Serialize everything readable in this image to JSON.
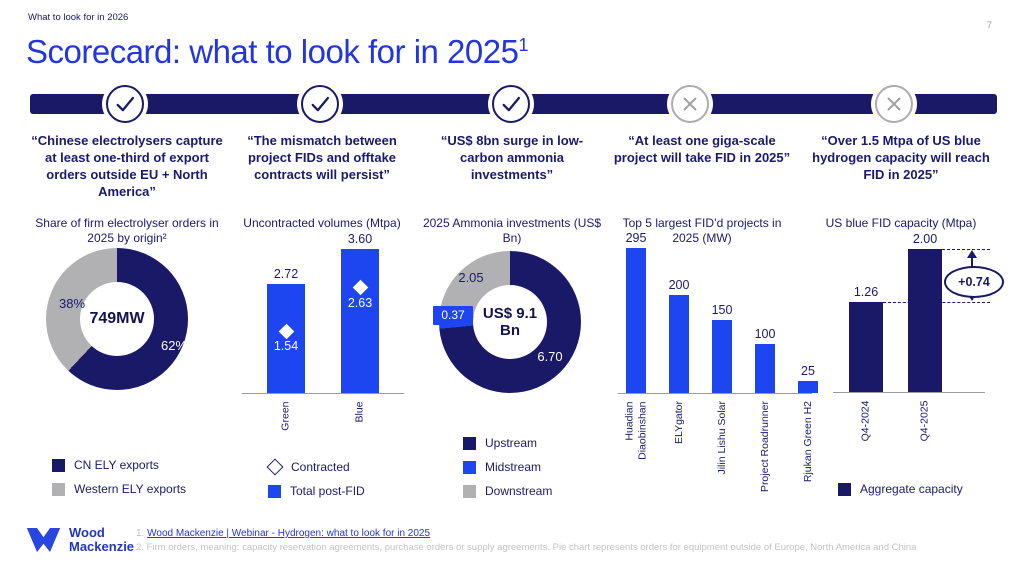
{
  "slide": {
    "eyebrow": "What to look for in 2026",
    "title": "Scorecard: what to look for in 2025",
    "title_sup": "1",
    "page_number": "7",
    "footer": {
      "logo_line1": "Wood",
      "logo_line2": "Mackenzie",
      "footnote1_index": "1.",
      "footnote1_link": "Wood Mackenzie | Webinar - Hydrogen: what to look for in 2025",
      "footnote2": "2. Firm orders, meaning: capacity reservation agreements, purchase orders or supply agreements. Pie chart represents orders for equipment outside of Europe, North America and China"
    }
  },
  "colors": {
    "navy": "#191968",
    "bright_blue": "#2335e3",
    "bar_blue": "#1e46f0",
    "slice_gray": "#b1b1b3",
    "cross_gray": "#9e9ea2"
  },
  "columns": [
    {
      "status": "pass",
      "quote": "“Chinese electrolysers capture at least one-third of export orders outside EU + North America”",
      "chart_title": "Share of firm electrolyser orders in 2025 by origin²",
      "legend": [
        {
          "swatch": "navy",
          "label": "CN ELY exports"
        },
        {
          "swatch": "gray",
          "label": "Western ELY exports"
        }
      ]
    },
    {
      "status": "pass",
      "quote": "“The mismatch between project FIDs and offtake contracts will persist”",
      "chart_title": "Uncontracted volumes (Mtpa)",
      "legend": [
        {
          "swatch": "diamond",
          "label": "Contracted"
        },
        {
          "swatch": "blue",
          "label": "Total post-FID"
        }
      ]
    },
    {
      "status": "pass",
      "quote": "“US$ 8bn surge in low-carbon ammonia investments”",
      "chart_title": "2025 Ammonia investments (US$ Bn)",
      "legend": [
        {
          "swatch": "navy",
          "label": "Upstream"
        },
        {
          "swatch": "blue",
          "label": "Midstream"
        },
        {
          "swatch": "gray",
          "label": "Downstream"
        }
      ]
    },
    {
      "status": "fail",
      "quote": "“At least one giga-scale project will take FID in 2025”",
      "chart_title": "Top 5 largest FID’d projects in 2025 (MW)",
      "legend": []
    },
    {
      "status": "fail",
      "quote": "“Over 1.5 Mtpa of US blue hydrogen capacity will reach FID in 2025”",
      "chart_title": "US blue FID capacity (Mtpa)",
      "legend": [
        {
          "swatch": "navy",
          "label": "Aggregate capacity"
        }
      ]
    }
  ],
  "chart_data": [
    {
      "type": "pie",
      "title": "Share of firm electrolyser orders in 2025 by origin",
      "center_label": "749MW",
      "unit": "%",
      "slices": [
        {
          "label": "CN ELY exports",
          "value": 62,
          "display": "62%",
          "color_key": "navy"
        },
        {
          "label": "Western ELY exports",
          "value": 38,
          "display": "38%",
          "color_key": "gray"
        }
      ]
    },
    {
      "type": "bar",
      "title": "Uncontracted volumes (Mtpa)",
      "categories": [
        "Green",
        "Blue"
      ],
      "series": [
        {
          "name": "Total post-FID",
          "style": "bar",
          "values": [
            2.72,
            3.6
          ]
        },
        {
          "name": "Contracted",
          "style": "diamond-marker",
          "values": [
            1.54,
            2.63
          ]
        }
      ],
      "ylim": [
        0,
        3.8
      ],
      "decimals": 2
    },
    {
      "type": "pie",
      "title": "2025 Ammonia investments (US$ Bn)",
      "center_label": "US$ 9.1 Bn",
      "unit": "US$ Bn",
      "slices": [
        {
          "label": "Upstream",
          "value": 6.7,
          "display": "6.70",
          "color_key": "navy"
        },
        {
          "label": "Midstream",
          "value": 0.37,
          "display": "0.37",
          "color_key": "blue"
        },
        {
          "label": "Downstream",
          "value": 2.05,
          "display": "2.05",
          "color_key": "gray"
        }
      ]
    },
    {
      "type": "bar",
      "title": "Top 5 largest FID’d projects in 2025 (MW)",
      "categories": [
        "Huadian\nDiaobinshan",
        "ELYgator",
        "Jilin Lishu Solar",
        "Project Roadrunner",
        "Rjukan Green H2"
      ],
      "values": [
        295,
        200,
        150,
        100,
        25
      ],
      "ylim": [
        0,
        320
      ],
      "decimals": 0
    },
    {
      "type": "bar",
      "title": "US blue FID capacity (Mtpa)",
      "categories": [
        "Q4-2024",
        "Q4-2025"
      ],
      "values": [
        1.26,
        2.0
      ],
      "ylim": [
        0,
        2.2
      ],
      "decimals": 2,
      "annotation": "+0.74"
    }
  ]
}
